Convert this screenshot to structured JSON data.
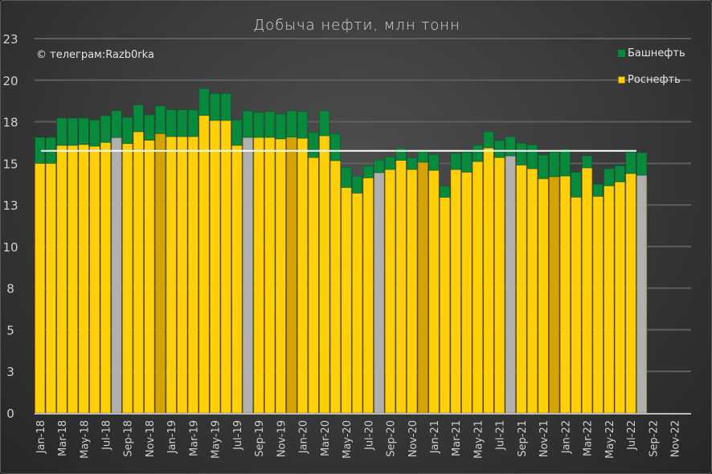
{
  "chart_data": {
    "type": "bar",
    "stacked": true,
    "title": "Добыча нефти, млн тонн",
    "annotation": "© телеграм:Razb0rka",
    "xlabel": "",
    "ylabel": "",
    "ylim": [
      0,
      22.5
    ],
    "yticks": [
      0,
      2.5,
      5,
      7.5,
      10,
      12.5,
      15,
      17.5,
      20,
      22.5
    ],
    "ytick_labels": [
      "0",
      "3",
      "5",
      "8",
      "10",
      "13",
      "15",
      "18",
      "20",
      "23"
    ],
    "grid": true,
    "legend_position": "top-right",
    "x_slots": [
      "Jan-18",
      "Feb-18",
      "Mar-18",
      "Apr-18",
      "May-18",
      "Jun-18",
      "Jul-18",
      "Aug-18",
      "Sep-18",
      "Oct-18",
      "Nov-18",
      "Dec-18",
      "Jan-19",
      "Feb-19",
      "Mar-19",
      "Apr-19",
      "May-19",
      "Jun-19",
      "Jul-19",
      "Aug-19",
      "Sep-19",
      "Oct-19",
      "Nov-19",
      "Dec-19",
      "Jan-20",
      "Feb-20",
      "Mar-20",
      "Apr-20",
      "May-20",
      "Jun-20",
      "Jul-20",
      "Aug-20",
      "Sep-20",
      "Oct-20",
      "Nov-20",
      "Dec-20",
      "Jan-21",
      "Feb-21",
      "Mar-21",
      "Apr-21",
      "May-21",
      "Jun-21",
      "Jul-21",
      "Aug-21",
      "Sep-21",
      "Oct-21",
      "Nov-21",
      "Dec-21",
      "Jan-22",
      "Feb-22",
      "Mar-22",
      "Apr-22",
      "May-22",
      "Jun-22",
      "Jul-22",
      "Aug-22",
      "Sep-22",
      "Oct-22",
      "Nov-22",
      "Dec-22"
    ],
    "xtick_labels": [
      "Jan-18",
      "Mar-18",
      "May-18",
      "Jul-18",
      "Sep-18",
      "Nov-18",
      "Jan-19",
      "Mar-19",
      "May-19",
      "Jul-19",
      "Sep-19",
      "Nov-19",
      "Jan-20",
      "Mar-20",
      "May-20",
      "Jul-20",
      "Sep-20",
      "Nov-20",
      "Jan-21",
      "Mar-21",
      "May-21",
      "Jul-21",
      "Sep-21",
      "Nov-21",
      "Jan-22",
      "Mar-22",
      "May-22",
      "Jul-22",
      "Sep-22",
      "Nov-22"
    ],
    "series": [
      {
        "name": "Роснефть",
        "color": "#ffd00a",
        "values": [
          15.0,
          15.0,
          16.08,
          16.08,
          16.13,
          16.03,
          16.26,
          16.55,
          16.19,
          16.9,
          16.39,
          16.79,
          16.61,
          16.61,
          16.61,
          17.88,
          17.58,
          17.58,
          16.08,
          16.56,
          16.56,
          16.56,
          16.47,
          16.58,
          16.51,
          15.35,
          16.66,
          15.16,
          13.55,
          13.21,
          14.13,
          14.44,
          14.63,
          15.18,
          14.63,
          15.07,
          14.58,
          12.96,
          14.63,
          14.47,
          15.11,
          15.93,
          15.35,
          15.45,
          14.9,
          14.68,
          14.08,
          14.2,
          14.24,
          12.97,
          14.73,
          13.02,
          13.65,
          13.89,
          14.39,
          14.29
        ]
      },
      {
        "name": "Башнефть",
        "color": "#088a3c",
        "values": [
          1.56,
          1.56,
          1.64,
          1.64,
          1.59,
          1.58,
          1.61,
          1.62,
          1.58,
          1.61,
          1.52,
          1.66,
          1.61,
          1.61,
          1.61,
          1.61,
          1.62,
          1.62,
          1.53,
          1.6,
          1.5,
          1.55,
          1.49,
          1.58,
          1.6,
          1.5,
          1.5,
          1.63,
          1.21,
          1.02,
          0.71,
          0.77,
          0.77,
          0.75,
          0.71,
          0.64,
          0.95,
          0.67,
          0.97,
          1.21,
          0.97,
          0.97,
          1.02,
          1.16,
          1.31,
          1.43,
          1.42,
          1.48,
          1.63,
          1.5,
          0.72,
          0.73,
          1.03,
          0.97,
          1.29,
          1.35
        ]
      }
    ],
    "highlight_colors": {
      "Aug": "#b0b0b0",
      "Dec": "#d4a302"
    },
    "reference_line": {
      "value": 15.75,
      "from": "Jan-18",
      "to": "Jul-22",
      "color": "#ffffff"
    }
  }
}
